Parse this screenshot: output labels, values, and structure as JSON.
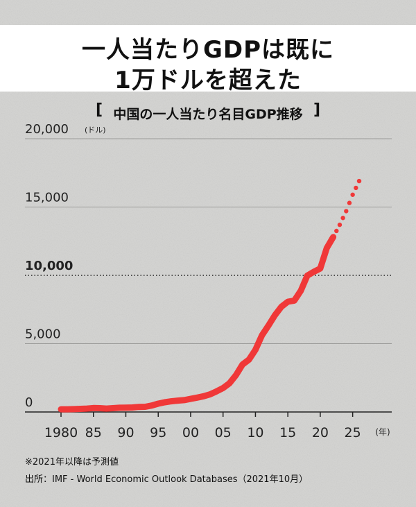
{
  "header": {
    "title_line1": "一人当たりGDPは既に",
    "title_line2": "1万ドルを超えた",
    "subtitle": "中国の一人当たり名目GDP推移",
    "bracket_open": "[",
    "bracket_close": "]"
  },
  "notes": {
    "forecast": "※2021年以降は予測値",
    "source": "出所：IMF - World Economic Outlook Databases（2021年10月）"
  },
  "chart_data": {
    "type": "line",
    "title": "中国の一人当たり名目GDP推移",
    "ylabel_unit": "(ドル)",
    "xlabel_unit": "(年)",
    "ylim": [
      0,
      20000
    ],
    "xlim": [
      1980,
      2026
    ],
    "y_ticks": [
      {
        "value": 0,
        "label": "0",
        "bold": false
      },
      {
        "value": 5000,
        "label": "5,000",
        "bold": false
      },
      {
        "value": 10000,
        "label": "10,000",
        "bold": true
      },
      {
        "value": 15000,
        "label": "15,000",
        "bold": false
      },
      {
        "value": 20000,
        "label": "20,000",
        "bold": false
      }
    ],
    "x_ticks": [
      {
        "value": 1980,
        "label": "1980"
      },
      {
        "value": 1985,
        "label": "85"
      },
      {
        "value": 1990,
        "label": "90"
      },
      {
        "value": 1995,
        "label": "95"
      },
      {
        "value": 2000,
        "label": "00"
      },
      {
        "value": 2005,
        "label": "05"
      },
      {
        "value": 2010,
        "label": "10"
      },
      {
        "value": 2015,
        "label": "15"
      },
      {
        "value": 2020,
        "label": "20"
      },
      {
        "value": 2025,
        "label": "25"
      }
    ],
    "reference_line": 10000,
    "color": "#f03838",
    "series": [
      {
        "style": "solid",
        "points": [
          [
            1980,
            200
          ],
          [
            1981,
            200
          ],
          [
            1982,
            210
          ],
          [
            1983,
            230
          ],
          [
            1984,
            250
          ],
          [
            1985,
            290
          ],
          [
            1986,
            280
          ],
          [
            1987,
            250
          ],
          [
            1988,
            280
          ],
          [
            1989,
            310
          ],
          [
            1990,
            320
          ],
          [
            1991,
            330
          ],
          [
            1992,
            370
          ],
          [
            1993,
            380
          ],
          [
            1994,
            470
          ],
          [
            1995,
            610
          ],
          [
            1996,
            710
          ],
          [
            1997,
            780
          ],
          [
            1998,
            830
          ],
          [
            1999,
            870
          ],
          [
            2000,
            960
          ],
          [
            2001,
            1050
          ],
          [
            2002,
            1150
          ],
          [
            2003,
            1290
          ],
          [
            2004,
            1510
          ],
          [
            2005,
            1750
          ],
          [
            2006,
            2100
          ],
          [
            2007,
            2700
          ],
          [
            2008,
            3470
          ],
          [
            2009,
            3830
          ],
          [
            2010,
            4550
          ],
          [
            2011,
            5610
          ],
          [
            2012,
            6320
          ],
          [
            2013,
            7080
          ],
          [
            2014,
            7700
          ],
          [
            2015,
            8070
          ],
          [
            2016,
            8150
          ],
          [
            2017,
            8880
          ],
          [
            2018,
            9980
          ],
          [
            2019,
            10260
          ],
          [
            2020,
            10500
          ],
          [
            2021,
            12000
          ],
          [
            2022,
            12800
          ]
        ]
      },
      {
        "style": "dotted",
        "points": [
          [
            2022,
            12800
          ],
          [
            2023,
            13700
          ],
          [
            2024,
            14700
          ],
          [
            2025,
            15900
          ],
          [
            2026,
            16900
          ]
        ]
      }
    ]
  }
}
